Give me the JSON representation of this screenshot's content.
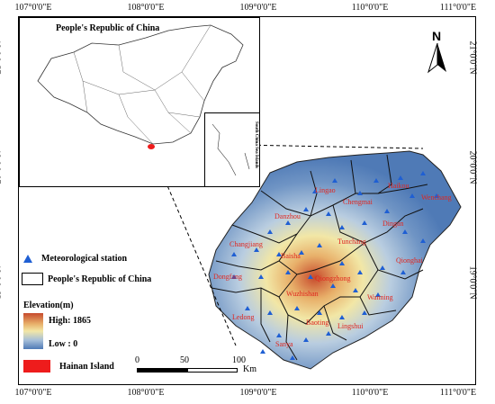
{
  "map": {
    "inset_title": "People's Republic of China",
    "south_china_sea_label": "South China Sea Islands",
    "north_label": "N",
    "lon_ticks": [
      "107°0'0\"E",
      "108°0'0\"E",
      "109°0'0\"E",
      "110°0'0\"E",
      "111°0'0\"E"
    ],
    "lat_ticks": [
      "21°0'0\"N",
      "20°0'0\"N",
      "19°0'0\"N"
    ],
    "cities": [
      "Lingao",
      "Haikou",
      "Chengmai",
      "Wenchang",
      "Danzhou",
      "Dingan",
      "Tunchang",
      "Qionghai",
      "Changjiang",
      "Baisha",
      "Dongfang",
      "Qiongzhong",
      "Wanning",
      "Wuzhishan",
      "Ledong",
      "Baoting",
      "Lingshui",
      "Sanya"
    ],
    "stations_count_hint": "",
    "colors": {
      "land_low": "#4f7ab6",
      "land_mid": "#f2e7a6",
      "land_high": "#c74a2c",
      "station": "#1f5fd3",
      "hainan_fill": "#ee1c1c",
      "county_border": "#111111"
    }
  },
  "legend": {
    "station_label": "Meteorological station",
    "prc_label": "People's Republic of China",
    "elevation_title": "Elevation(m)",
    "high_label": "High: 1865",
    "low_label": "Low : 0",
    "hainan_label": "Hainan Island"
  },
  "scalebar": {
    "labels": [
      "0",
      "50",
      "100"
    ],
    "unit": "Km"
  }
}
